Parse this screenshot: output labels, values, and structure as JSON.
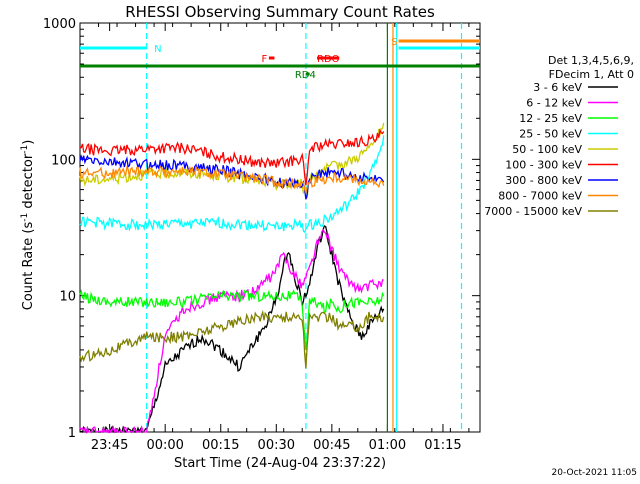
{
  "chart_data": {
    "type": "line",
    "title": "RHESSI Observing Summary Count Rates",
    "ylabel_base": "Count Rate (s",
    "ylabel_sup": "-1",
    "ylabel_mid": " detector",
    "ylabel_sup2": "-1",
    "ylabel_end": ")",
    "xlabel": "Start Time (24-Aug-04 23:37:22)",
    "y_scale": "log",
    "ylim": [
      1,
      1000
    ],
    "xlim_minutes": [
      -8,
      100
    ],
    "x_ticks": [
      {
        "label": "23:45",
        "t": 0
      },
      {
        "label": "00:00",
        "t": 15
      },
      {
        "label": "00:15",
        "t": 30
      },
      {
        "label": "00:30",
        "t": 45
      },
      {
        "label": "00:45",
        "t": 60
      },
      {
        "label": "01:00",
        "t": 75
      },
      {
        "label": "01:15",
        "t": 90
      }
    ],
    "y_ticks": [
      {
        "label": "1",
        "v": 1
      },
      {
        "label": "10",
        "v": 10
      },
      {
        "label": "100",
        "v": 100
      },
      {
        "label": "1000",
        "v": 1000
      }
    ],
    "legend_header": [
      "Det 1,3,4,5,6,9,",
      "FDecim 1, Att 0"
    ],
    "legend_placement": "right",
    "timestamp": "20-Oct-2021 11:05",
    "series": [
      {
        "name": "3 - 6 keV",
        "color": "#000000",
        "x": [
          -8,
          10,
          15,
          20,
          25,
          30,
          35,
          40,
          42,
          44,
          46,
          47,
          48,
          50,
          52,
          54,
          56,
          58,
          60,
          62,
          64,
          66,
          68,
          70,
          72,
          74
        ],
        "y": [
          1,
          1,
          3,
          4,
          5,
          4,
          3,
          5,
          6,
          8,
          12,
          16,
          22,
          14,
          9,
          12,
          22,
          32,
          20,
          12,
          8,
          6,
          5,
          6,
          7,
          8
        ]
      },
      {
        "name": "6 - 12 keV",
        "color": "#ff00ff",
        "x": [
          -8,
          10,
          15,
          20,
          25,
          30,
          35,
          40,
          42,
          44,
          46,
          47,
          48,
          50,
          52,
          54,
          56,
          58,
          60,
          62,
          64,
          66,
          68,
          70,
          72,
          74
        ],
        "y": [
          1,
          1,
          5,
          8,
          9,
          10,
          10,
          11,
          13,
          14,
          18,
          20,
          18,
          14,
          12,
          16,
          24,
          30,
          22,
          16,
          13,
          12,
          11,
          12,
          12,
          13
        ]
      },
      {
        "name": "12 - 25 keV",
        "color": "#00ff00",
        "x": [
          -8,
          0,
          10,
          20,
          30,
          40,
          45,
          50,
          52,
          53,
          54,
          56,
          58,
          60,
          62,
          64,
          66,
          68,
          70,
          72,
          74
        ],
        "y": [
          10,
          9,
          9,
          9,
          10,
          10,
          10,
          10,
          9,
          4,
          9,
          9,
          8,
          9,
          8,
          9,
          9,
          9,
          9,
          9,
          10
        ]
      },
      {
        "name": "25 - 50 keV",
        "color": "#00ffff",
        "x": [
          -8,
          0,
          10,
          20,
          30,
          40,
          45,
          50,
          52,
          53,
          54,
          56,
          58,
          60,
          62,
          64,
          66,
          68,
          70,
          72,
          74
        ],
        "y": [
          35,
          34,
          33,
          34,
          34,
          33,
          32,
          33,
          33,
          30,
          33,
          34,
          36,
          38,
          42,
          46,
          52,
          62,
          75,
          95,
          150
        ]
      },
      {
        "name": "50 - 100 keV",
        "color": "#cccc00",
        "x": [
          -8,
          0,
          10,
          20,
          30,
          40,
          45,
          50,
          52,
          53,
          54,
          56,
          58,
          60,
          62,
          64,
          66,
          68,
          70,
          72,
          74
        ],
        "y": [
          70,
          72,
          78,
          80,
          76,
          70,
          66,
          65,
          68,
          50,
          72,
          80,
          84,
          88,
          92,
          96,
          100,
          110,
          120,
          140,
          185
        ]
      },
      {
        "name": "100 - 300 keV",
        "color": "#ff0000",
        "x": [
          -8,
          0,
          10,
          20,
          30,
          40,
          45,
          50,
          52,
          53,
          54,
          56,
          58,
          60,
          62,
          64,
          66,
          68,
          70,
          72,
          74
        ],
        "y": [
          120,
          115,
          120,
          122,
          105,
          95,
          93,
          98,
          105,
          60,
          120,
          125,
          128,
          128,
          130,
          132,
          132,
          135,
          138,
          140,
          160
        ]
      },
      {
        "name": "300 - 800 keV",
        "color": "#0000ff",
        "x": [
          -8,
          0,
          10,
          20,
          30,
          40,
          45,
          50,
          52,
          53,
          54,
          56,
          58,
          60,
          62,
          64,
          66,
          68,
          70,
          72,
          74
        ],
        "y": [
          100,
          95,
          92,
          90,
          84,
          74,
          68,
          66,
          68,
          55,
          72,
          78,
          80,
          82,
          80,
          78,
          76,
          74,
          72,
          70,
          68
        ]
      },
      {
        "name": "800 - 7000 keV",
        "color": "#ff8800",
        "x": [
          -8,
          0,
          10,
          20,
          30,
          40,
          45,
          50,
          52,
          53,
          54,
          56,
          58,
          60,
          62,
          64,
          66,
          68,
          70,
          72,
          74
        ],
        "y": [
          80,
          80,
          82,
          82,
          78,
          72,
          68,
          66,
          66,
          60,
          67,
          70,
          72,
          74,
          74,
          73,
          72,
          70,
          68,
          66,
          64
        ]
      },
      {
        "name": "7000 - 15000 keV",
        "color": "#808000",
        "x": [
          -8,
          0,
          10,
          20,
          30,
          40,
          45,
          50,
          52,
          53,
          54,
          56,
          58,
          60,
          62,
          64,
          66,
          68,
          70,
          72,
          74
        ],
        "y": [
          3.5,
          4,
          5,
          5,
          6,
          7,
          7,
          7,
          7,
          3,
          7,
          7,
          7,
          7,
          6,
          6,
          6,
          6,
          7,
          7,
          7
        ]
      }
    ],
    "flag_bars": [
      {
        "label": "N",
        "color": "#00ffff",
        "t_start": -8,
        "t_end": 10,
        "label_t": 12,
        "row": "upper"
      },
      {
        "label": "S",
        "color": "#ff8800",
        "t_start": 78,
        "t_end": 100,
        "label_t": 76,
        "row": "top"
      },
      {
        "label": "S-cyan",
        "color": "#00ffff",
        "t_start": 78,
        "t_end": 100,
        "label_t": null,
        "row": "upper"
      },
      {
        "label": "F",
        "color": "#ff0000",
        "t_start": 43,
        "t_end": 44.5,
        "label_t": 41,
        "row": "f"
      },
      {
        "label": "RDO",
        "color": "#ff0000",
        "t_start": 56,
        "t_end": 62,
        "label_t": 56,
        "row": "rdo"
      },
      {
        "label": "RD4",
        "color": "#008000",
        "t_start": 53,
        "t_end": 54,
        "label_t": 50,
        "row": "rd4"
      },
      {
        "label": "",
        "color": "#008000",
        "t_start": -8,
        "t_end": 100,
        "label_t": null,
        "row": "green"
      }
    ],
    "vertical_lines": [
      {
        "t": 10,
        "color": "#00ffff",
        "style": "dashed"
      },
      {
        "t": 95,
        "color": "#00ffff",
        "style": "dashed"
      },
      {
        "t": 75,
        "color": "#008000",
        "style": "solid"
      },
      {
        "t": 76.5,
        "color": "#ff8800",
        "style": "solid"
      },
      {
        "t": 77.5,
        "color": "#00ffff",
        "style": "solid"
      },
      {
        "t": 53,
        "color": "#00ffff",
        "style": "dashed"
      }
    ]
  }
}
